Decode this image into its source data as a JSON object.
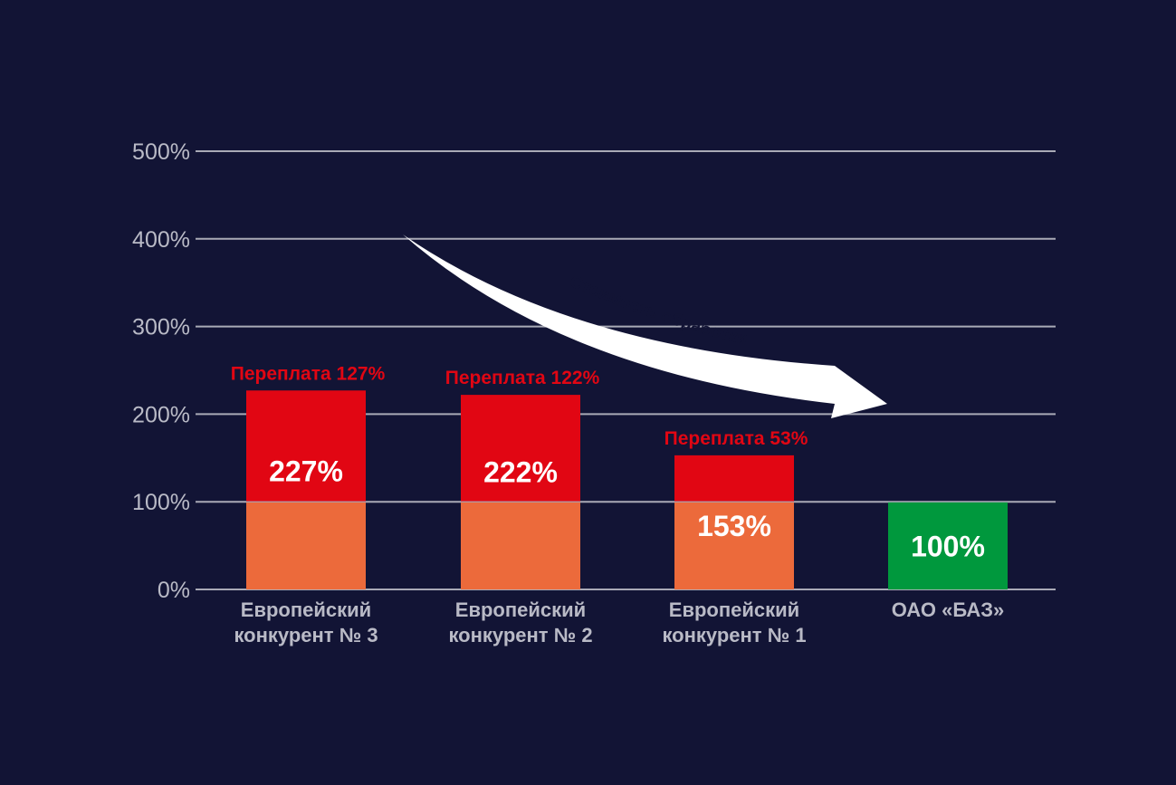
{
  "chart_data": {
    "type": "bar",
    "stacked": true,
    "categories": [
      [
        "Европейский",
        "конкурент № 3"
      ],
      [
        "Европейский",
        "конкурент № 2"
      ],
      [
        "Европейский",
        "конкурент № 1"
      ],
      [
        "ОАО «БАЗ»"
      ]
    ],
    "totals": [
      227,
      222,
      153,
      100
    ],
    "value_labels": [
      "227%",
      "222%",
      "153%",
      "100%"
    ],
    "overpay_labels": [
      "Переплата 127%",
      "Переплата 122%",
      "Переплата 53%",
      ""
    ],
    "series": [
      {
        "values": [
          100,
          100,
          100,
          100
        ]
      },
      {
        "values": [
          127,
          122,
          53,
          0
        ]
      }
    ],
    "ylim": [
      0,
      500
    ],
    "yticks": [
      "0%",
      "100%",
      "200%",
      "300%",
      "400%",
      "500%"
    ],
    "grid": true,
    "arrow_label": "Стоимость обработки",
    "colors": {
      "background": "#121435",
      "base": "#ec6a3b",
      "overpay": "#e10613",
      "own": "#00983d",
      "overpay_text": "#e10613",
      "grid": "#a9aab6",
      "arrow": "#ffffff"
    }
  }
}
